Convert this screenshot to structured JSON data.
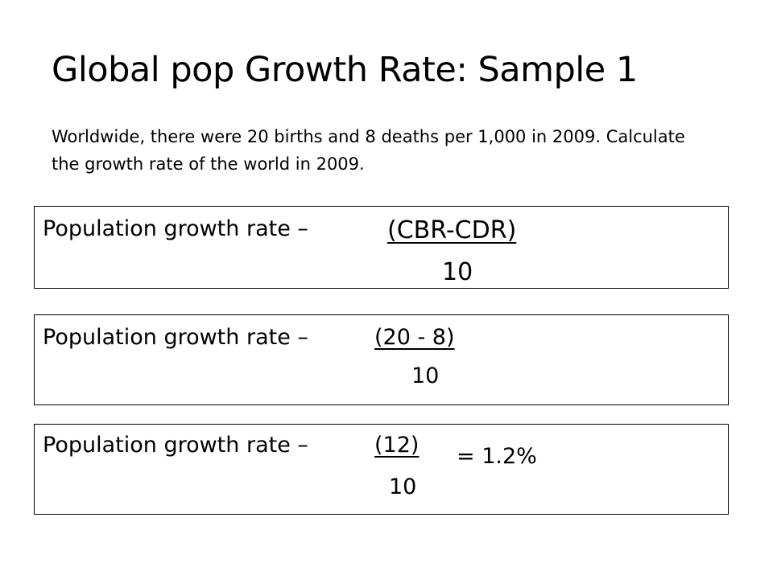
{
  "slide": {
    "title": "Global pop Growth Rate: Sample 1",
    "question": "Worldwide, there were 20 births and 8 deaths per 1,000 in 2009.  Calculate the growth rate of the world in 2009."
  },
  "steps": [
    {
      "label": "Population growth rate –",
      "numerator": "(CBR-CDR)",
      "denominator": "10"
    },
    {
      "label": "Population growth rate –",
      "numerator": "(20 - 8)",
      "denominator": "10"
    },
    {
      "label": "Population growth rate –",
      "numerator": "(12)",
      "denominator": "10",
      "result": "= 1.2%"
    }
  ]
}
